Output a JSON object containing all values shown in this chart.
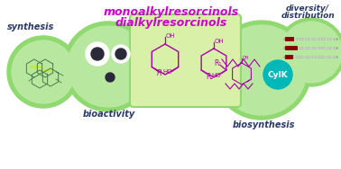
{
  "bg_color": "#ffffff",
  "title_line1": "monoalkylresorcinols",
  "title_line2": "dialkylresorcinols",
  "title_color": "#cc00cc",
  "title_fontsize": 9.0,
  "circle_light": "#b8e8a0",
  "circle_medium": "#90d870",
  "center_rect_color": "#d8f0a8",
  "label_synthesis": "synthesis",
  "label_bioactivity": "bioactivity",
  "label_diversity": "diversity/\ndistribution",
  "label_biosynthesis": "biosynthesis",
  "label_fontsize": 7.0,
  "label_color": "#2a3a6a",
  "cylk_color": "#00b8b8",
  "cylk_text": "CylK",
  "mol_color": "#aa00aa",
  "struct_color": "#4a7a4a"
}
